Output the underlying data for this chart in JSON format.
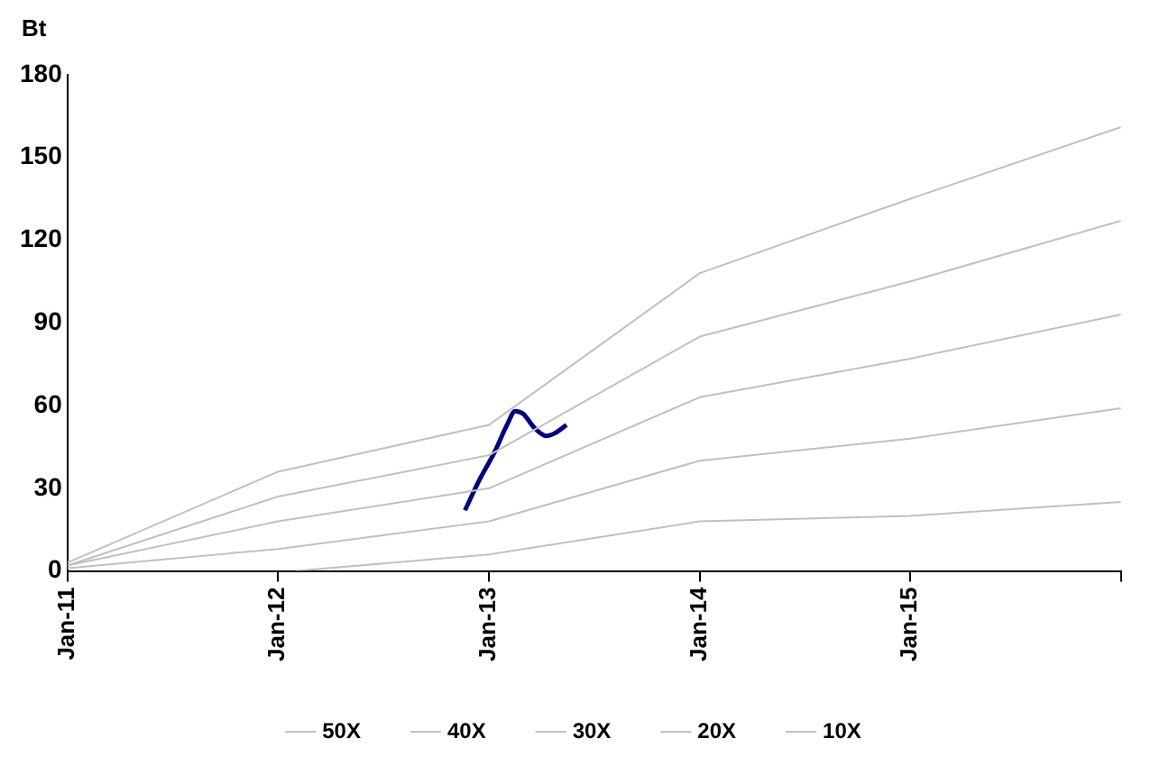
{
  "chart_data": {
    "type": "line",
    "ylabel": "Bt",
    "xlim": [
      "2011-01",
      "2016-01"
    ],
    "xticks": [
      {
        "value": "2011-01",
        "label": "Jan-11"
      },
      {
        "value": "2012-01",
        "label": "Jan-12"
      },
      {
        "value": "2013-01",
        "label": "Jan-13"
      },
      {
        "value": "2014-01",
        "label": "Jan-14"
      },
      {
        "value": "2015-01",
        "label": "Jan-15"
      },
      {
        "value": "2016-01",
        "label": null
      }
    ],
    "ylim": [
      0,
      180
    ],
    "yticks": [
      0,
      30,
      60,
      90,
      120,
      150,
      180
    ],
    "grid": false,
    "legend": "bottom",
    "marker": "none",
    "line_style": "solid",
    "series": [
      {
        "name": "50X",
        "color": "#c0c0c0",
        "x": [
          "2011-01",
          "2012-01",
          "2013-01",
          "2014-01",
          "2015-01",
          "2016-01"
        ],
        "values": [
          3,
          36,
          53,
          108,
          135,
          161
        ]
      },
      {
        "name": "40X",
        "color": "#c0c0c0",
        "x": [
          "2011-01",
          "2012-01",
          "2013-01",
          "2014-01",
          "2015-01",
          "2016-01"
        ],
        "values": [
          2,
          27,
          42,
          85,
          105,
          127
        ]
      },
      {
        "name": "30X",
        "color": "#c0c0c0",
        "x": [
          "2011-01",
          "2012-01",
          "2013-01",
          "2014-01",
          "2015-01",
          "2016-01"
        ],
        "values": [
          2,
          18,
          30,
          63,
          77,
          93
        ]
      },
      {
        "name": "20X",
        "color": "#c0c0c0",
        "x": [
          "2011-01",
          "2012-01",
          "2013-01",
          "2014-01",
          "2015-01",
          "2016-01"
        ],
        "values": [
          1,
          8,
          18,
          40,
          48,
          59
        ]
      },
      {
        "name": "10X",
        "color": "#c0c0c0",
        "x": [
          "2012-02",
          "2013-01",
          "2014-01",
          "2015-01",
          "2016-01"
        ],
        "values": [
          0,
          6,
          18,
          20,
          25
        ]
      },
      {
        "color": "#000080",
        "x": [
          "2012-11-20",
          "2012-12-15",
          "2013-01-10",
          "2013-02-01",
          "2013-02-15",
          "2013-03-01",
          "2013-03-20",
          "2013-04-10",
          "2013-04-25",
          "2013-05-15"
        ],
        "values": [
          22,
          33,
          43,
          53,
          58,
          57,
          52,
          49,
          50,
          53
        ]
      }
    ]
  }
}
